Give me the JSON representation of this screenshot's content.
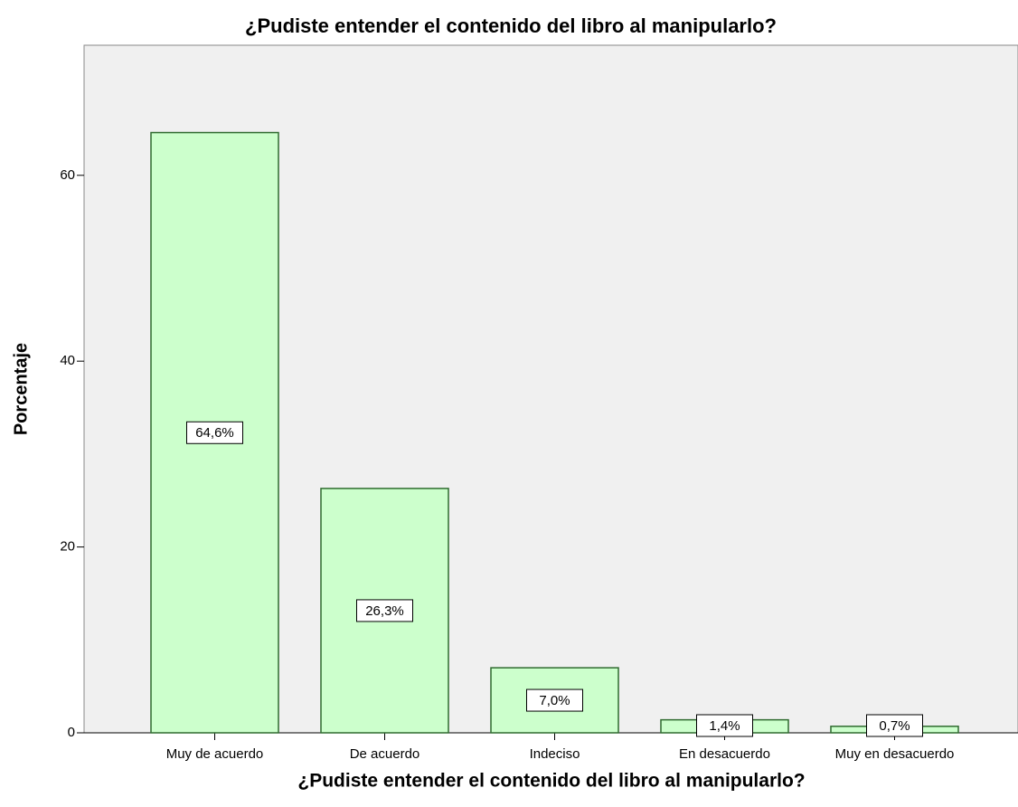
{
  "chart_data": {
    "type": "bar",
    "title": "¿Pudiste entender el contenido del libro al manipularlo?",
    "x_label": "¿Pudiste entender el contenido del libro al manipularlo?",
    "y_label": "Porcentaje",
    "categories": [
      "Muy de acuerdo",
      "De acuerdo",
      "Indeciso",
      "En desacuerdo",
      "Muy en desacuerdo"
    ],
    "values": [
      64.6,
      26.3,
      7.0,
      1.4,
      0.7
    ],
    "value_labels": [
      "64,6%",
      "26,3%",
      "7,0%",
      "1,4%",
      "0,7%"
    ],
    "color": "#ccffcc",
    "ylim": [
      0,
      74
    ],
    "yticks": [
      0,
      20,
      40,
      60
    ]
  }
}
